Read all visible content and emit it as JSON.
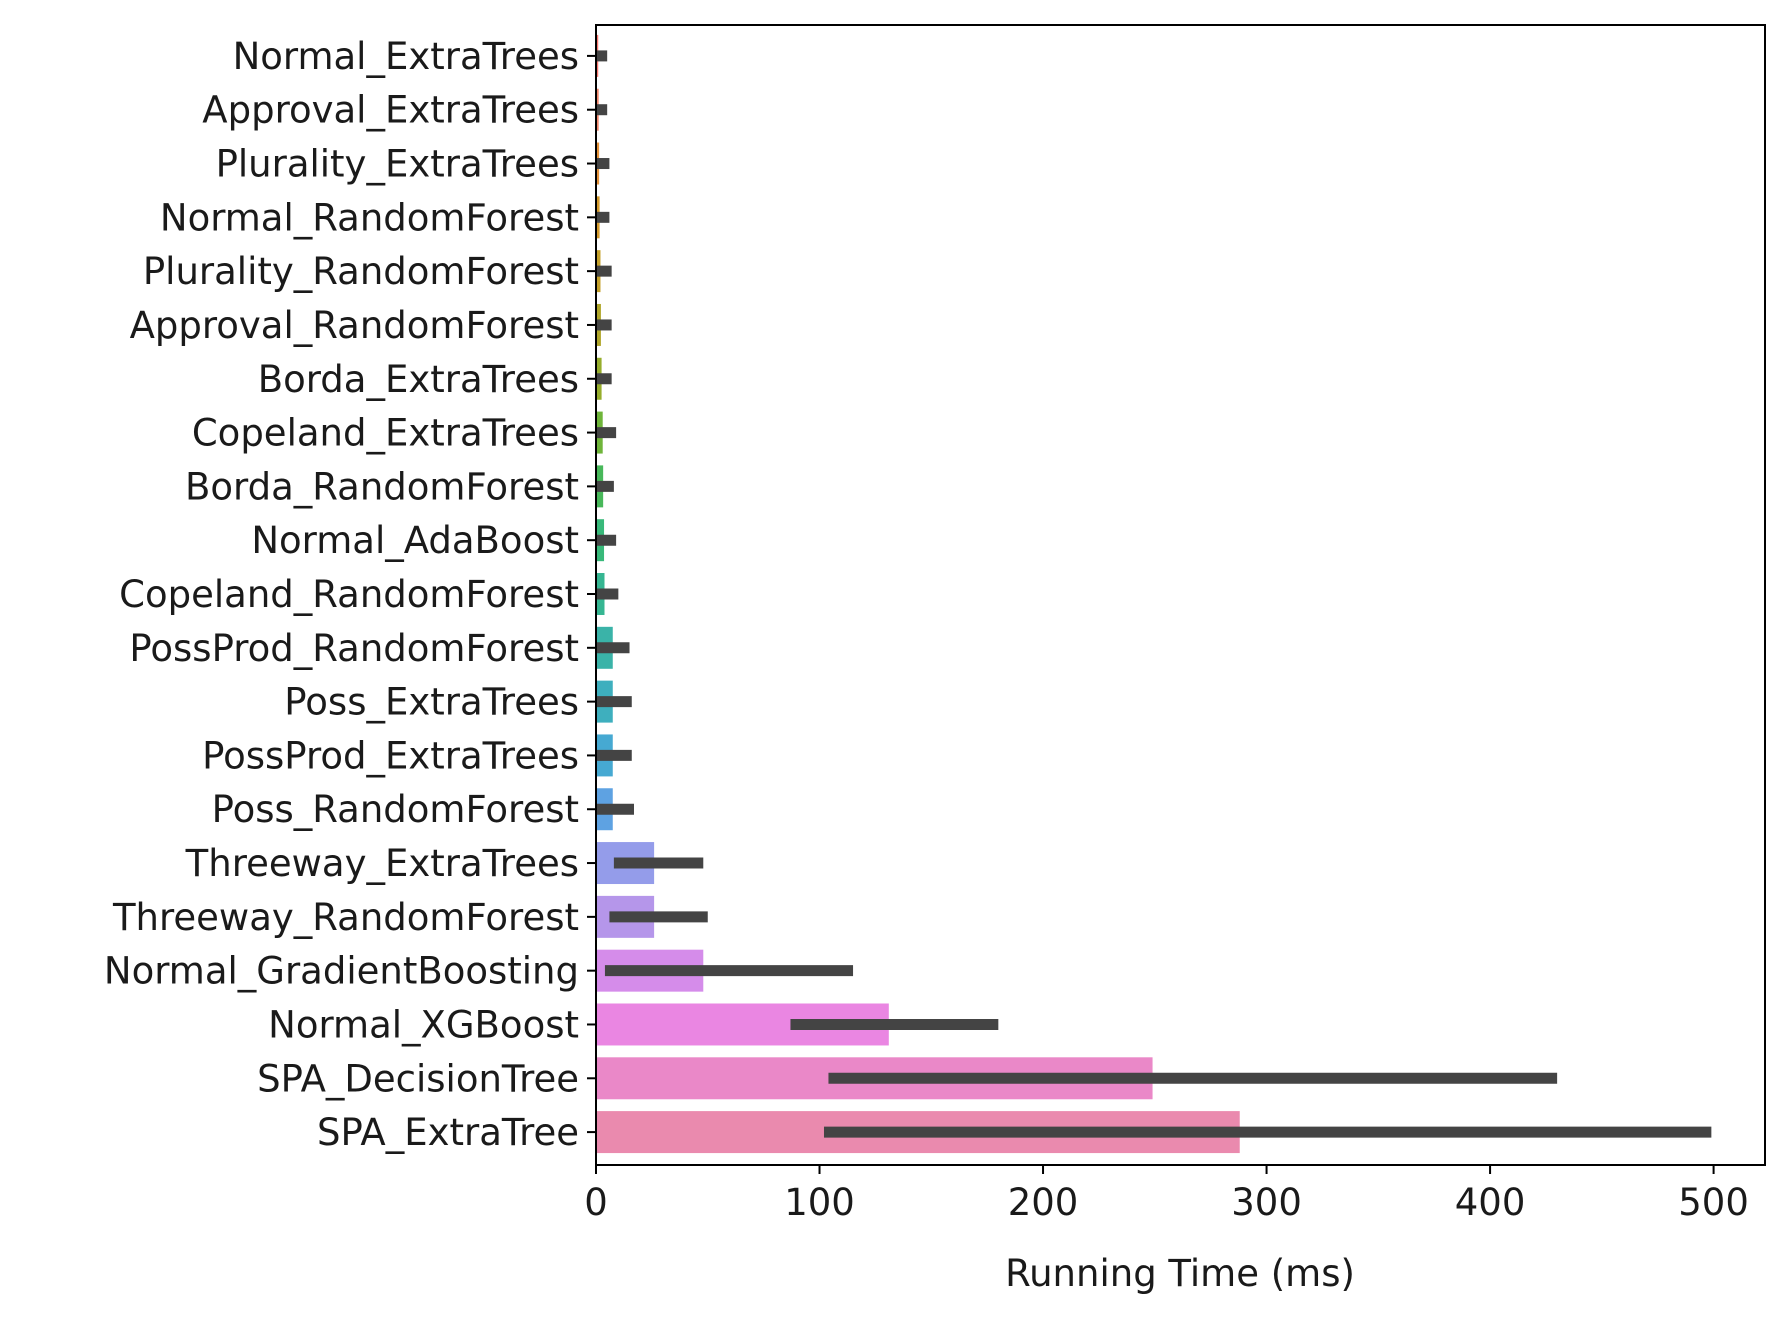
{
  "chart_data": {
    "type": "bar",
    "orientation": "horizontal",
    "title": "",
    "xlabel": "Running Time (ms)",
    "ylabel": "",
    "xlim": [
      0,
      523
    ],
    "xticks": [
      0,
      100,
      200,
      300,
      400,
      500
    ],
    "grid": false,
    "legend": "none",
    "categories": [
      "Normal_ExtraTrees",
      "Approval_ExtraTrees",
      "Plurality_ExtraTrees",
      "Normal_RandomForest",
      "Plurality_RandomForest",
      "Approval_RandomForest",
      "Borda_ExtraTrees",
      "Copeland_ExtraTrees",
      "Borda_RandomForest",
      "Normal_AdaBoost",
      "Copeland_RandomForest",
      "PossProd_RandomForest",
      "Poss_ExtraTrees",
      "PossProd_ExtraTrees",
      "Poss_RandomForest",
      "Threeway_ExtraTrees",
      "Threeway_RandomForest",
      "Normal_GradientBoosting",
      "Normal_XGBoost",
      "SPA_DecisionTree",
      "SPA_ExtraTree"
    ],
    "values": [
      1.0,
      1.2,
      1.4,
      1.6,
      2.0,
      2.2,
      2.5,
      3.0,
      3.2,
      3.6,
      3.8,
      7.5,
      7.5,
      7.5,
      7.5,
      26,
      26,
      48,
      131,
      249,
      288
    ],
    "error_low": [
      0,
      0,
      0,
      0,
      0,
      0,
      0,
      0,
      0,
      0,
      0,
      0,
      0,
      0,
      0,
      8,
      6,
      4,
      87,
      104,
      102
    ],
    "error_high": [
      5,
      5,
      6,
      6,
      7,
      7,
      7,
      9,
      8,
      9,
      10,
      15,
      16,
      16,
      17,
      48,
      50,
      115,
      180,
      430,
      499
    ],
    "colors": [
      "#f8766d",
      "#f0866a",
      "#e4923a",
      "#d49a2c",
      "#c4a02a",
      "#b0a62a",
      "#96ad2c",
      "#6fb53a",
      "#48b85a",
      "#38b97a",
      "#36b692",
      "#3ab3a8",
      "#3eafbe",
      "#46a9d2",
      "#5ea2e2",
      "#949cea",
      "#b596ea",
      "#d58cea",
      "#ea86e2",
      "#ea88c8",
      "#ea8aae"
    ],
    "error_bar_color": "#444444"
  }
}
